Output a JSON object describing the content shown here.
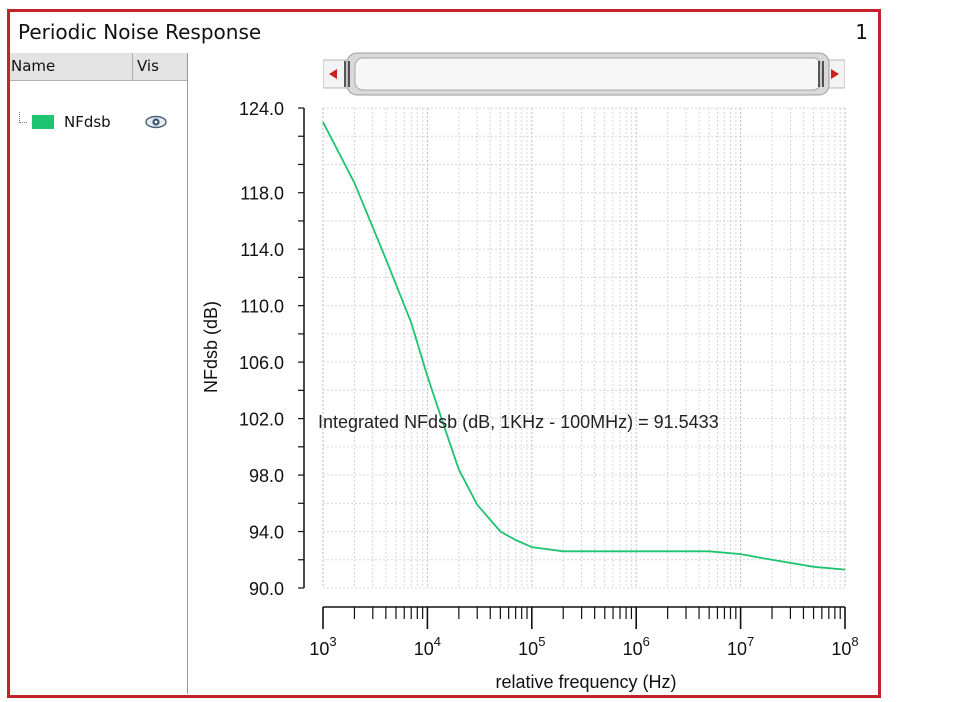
{
  "panel": {
    "title": "Periodic Noise Response",
    "page_number": "1"
  },
  "legend": {
    "columns": {
      "name": "Name",
      "vis": "Vis"
    },
    "items": [
      {
        "label": "NFdsb",
        "color": "#1ec46f",
        "icon": "eye-icon"
      }
    ]
  },
  "scroller": {
    "left_icon": "arrow-left-icon",
    "right_icon": "arrow-right-icon"
  },
  "chart_data": {
    "type": "line",
    "xlabel": "relative frequency (Hz)",
    "ylabel": "NFdsb (dB)",
    "x_scale": "log",
    "xlim": [
      1000,
      100000000
    ],
    "ylim": [
      90.0,
      124.0
    ],
    "x_tick_labels": [
      {
        "base": "10",
        "exp": "3"
      },
      {
        "base": "10",
        "exp": "4"
      },
      {
        "base": "10",
        "exp": "5"
      },
      {
        "base": "10",
        "exp": "6"
      },
      {
        "base": "10",
        "exp": "7"
      },
      {
        "base": "10",
        "exp": "8"
      }
    ],
    "y_tick_labels": [
      "124.0",
      "118.0",
      "114.0",
      "110.0",
      "106.0",
      "102.0",
      "98.0",
      "94.0",
      "90.0"
    ],
    "grid": true,
    "annotation": "Integrated NFdsb (dB, 1KHz - 100MHz) = 91.5433",
    "series": [
      {
        "name": "NFdsb",
        "color": "#1ec46f",
        "x": [
          1000,
          2000,
          4000,
          7000,
          10000,
          15000,
          20000,
          30000,
          50000,
          70000,
          100000,
          200000,
          500000,
          1000000,
          2000000,
          5000000,
          10000000,
          20000000,
          50000000,
          100000000
        ],
        "y": [
          123.0,
          118.7,
          113.3,
          108.8,
          105.0,
          101.1,
          98.4,
          95.9,
          94.0,
          93.4,
          92.9,
          92.6,
          92.6,
          92.6,
          92.6,
          92.6,
          92.4,
          92.0,
          91.5,
          91.3
        ]
      }
    ]
  }
}
